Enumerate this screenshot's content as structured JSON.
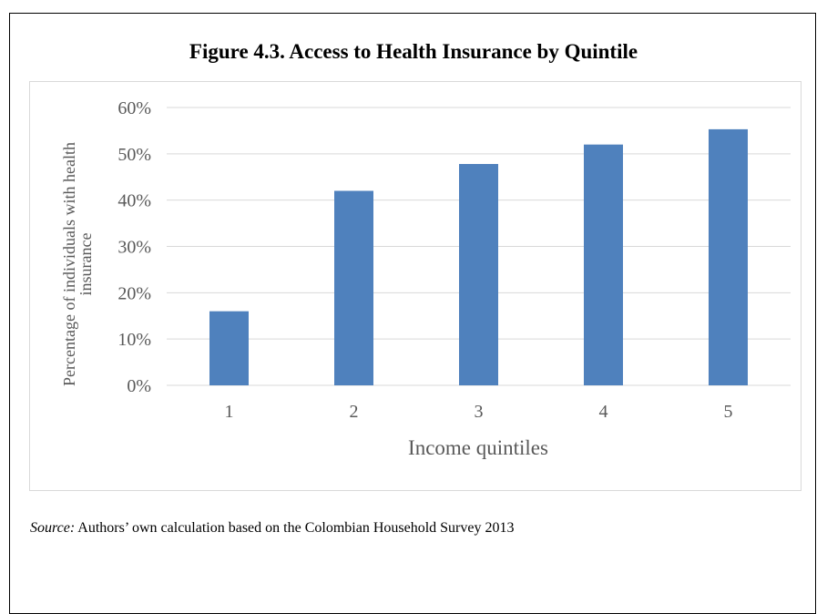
{
  "title": "Figure 4.3. Access to Health Insurance by Quintile",
  "source": {
    "label": "Source:",
    "text": " Authors’ own calculation based on the Colombian Household Survey 2013"
  },
  "chart_data": {
    "type": "bar",
    "title": "Figure 4.3. Access to Health Insurance by Quintile",
    "xlabel": "Income quintiles",
    "ylabel": [
      "Percentage of individuals with health",
      "insurance"
    ],
    "categories": [
      "1",
      "2",
      "3",
      "4",
      "5"
    ],
    "values": [
      0.16,
      0.42,
      0.478,
      0.52,
      0.553
    ],
    "ylim": [
      0,
      0.6
    ],
    "yticks": [
      0,
      0.1,
      0.2,
      0.3,
      0.4,
      0.5,
      0.6
    ],
    "ytick_labels": [
      "0%",
      "10%",
      "20%",
      "30%",
      "40%",
      "50%",
      "60%"
    ],
    "grid": true,
    "legend": "none",
    "bar_color": "#4f81bd"
  }
}
